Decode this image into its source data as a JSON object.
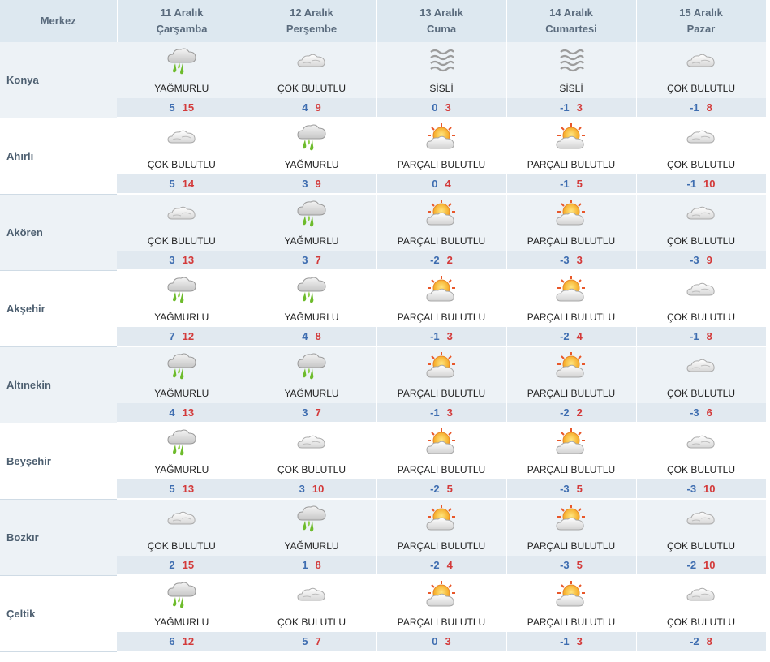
{
  "header": {
    "merkez": "Merkez",
    "days": [
      {
        "date": "11 Aralık",
        "day": "Çarşamba"
      },
      {
        "date": "12 Aralık",
        "day": "Perşembe"
      },
      {
        "date": "13 Aralık",
        "day": "Cuma"
      },
      {
        "date": "14 Aralık",
        "day": "Cumartesi"
      },
      {
        "date": "15 Aralık",
        "day": "Pazar"
      }
    ]
  },
  "icons": {
    "rain": "rain-cloud-icon",
    "cloudy": "cloudy-icon",
    "fog": "fog-icon",
    "partly": "partly-cloudy-sun-icon"
  },
  "colors": {
    "low": "#3e6db0",
    "high": "#d33a3a",
    "header_bg": "#dde8f0",
    "shade_bg": "#edf2f6"
  },
  "rows": [
    {
      "city": "Konya",
      "days": [
        {
          "icon": "rain",
          "desc": "YAĞMURLU",
          "low": "5",
          "high": "15"
        },
        {
          "icon": "cloudy",
          "desc": "ÇOK BULUTLU",
          "low": "4",
          "high": "9"
        },
        {
          "icon": "fog",
          "desc": "SİSLİ",
          "low": "0",
          "high": "3"
        },
        {
          "icon": "fog",
          "desc": "SİSLİ",
          "low": "-1",
          "high": "3"
        },
        {
          "icon": "cloudy",
          "desc": "ÇOK BULUTLU",
          "low": "-1",
          "high": "8"
        }
      ]
    },
    {
      "city": "Ahırlı",
      "days": [
        {
          "icon": "cloudy",
          "desc": "ÇOK BULUTLU",
          "low": "5",
          "high": "14"
        },
        {
          "icon": "rain",
          "desc": "YAĞMURLU",
          "low": "3",
          "high": "9"
        },
        {
          "icon": "partly",
          "desc": "PARÇALI BULUTLU",
          "low": "0",
          "high": "4"
        },
        {
          "icon": "partly",
          "desc": "PARÇALI BULUTLU",
          "low": "-1",
          "high": "5"
        },
        {
          "icon": "cloudy",
          "desc": "ÇOK BULUTLU",
          "low": "-1",
          "high": "10"
        }
      ]
    },
    {
      "city": "Akören",
      "days": [
        {
          "icon": "cloudy",
          "desc": "ÇOK BULUTLU",
          "low": "3",
          "high": "13"
        },
        {
          "icon": "rain",
          "desc": "YAĞMURLU",
          "low": "3",
          "high": "7"
        },
        {
          "icon": "partly",
          "desc": "PARÇALI BULUTLU",
          "low": "-2",
          "high": "2"
        },
        {
          "icon": "partly",
          "desc": "PARÇALI BULUTLU",
          "low": "-3",
          "high": "3"
        },
        {
          "icon": "cloudy",
          "desc": "ÇOK BULUTLU",
          "low": "-3",
          "high": "9"
        }
      ]
    },
    {
      "city": "Akşehir",
      "days": [
        {
          "icon": "rain",
          "desc": "YAĞMURLU",
          "low": "7",
          "high": "12"
        },
        {
          "icon": "rain",
          "desc": "YAĞMURLU",
          "low": "4",
          "high": "8"
        },
        {
          "icon": "partly",
          "desc": "PARÇALI BULUTLU",
          "low": "-1",
          "high": "3"
        },
        {
          "icon": "partly",
          "desc": "PARÇALI BULUTLU",
          "low": "-2",
          "high": "4"
        },
        {
          "icon": "cloudy",
          "desc": "ÇOK BULUTLU",
          "low": "-1",
          "high": "8"
        }
      ]
    },
    {
      "city": "Altınekin",
      "days": [
        {
          "icon": "rain",
          "desc": "YAĞMURLU",
          "low": "4",
          "high": "13"
        },
        {
          "icon": "rain",
          "desc": "YAĞMURLU",
          "low": "3",
          "high": "7"
        },
        {
          "icon": "partly",
          "desc": "PARÇALI BULUTLU",
          "low": "-1",
          "high": "3"
        },
        {
          "icon": "partly",
          "desc": "PARÇALI BULUTLU",
          "low": "-2",
          "high": "2"
        },
        {
          "icon": "cloudy",
          "desc": "ÇOK BULUTLU",
          "low": "-3",
          "high": "6"
        }
      ]
    },
    {
      "city": "Beyşehir",
      "days": [
        {
          "icon": "rain",
          "desc": "YAĞMURLU",
          "low": "5",
          "high": "13"
        },
        {
          "icon": "cloudy",
          "desc": "ÇOK BULUTLU",
          "low": "3",
          "high": "10"
        },
        {
          "icon": "partly",
          "desc": "PARÇALI BULUTLU",
          "low": "-2",
          "high": "5"
        },
        {
          "icon": "partly",
          "desc": "PARÇALI BULUTLU",
          "low": "-3",
          "high": "5"
        },
        {
          "icon": "cloudy",
          "desc": "ÇOK BULUTLU",
          "low": "-3",
          "high": "10"
        }
      ]
    },
    {
      "city": "Bozkır",
      "days": [
        {
          "icon": "cloudy",
          "desc": "ÇOK BULUTLU",
          "low": "2",
          "high": "15"
        },
        {
          "icon": "rain",
          "desc": "YAĞMURLU",
          "low": "1",
          "high": "8"
        },
        {
          "icon": "partly",
          "desc": "PARÇALI BULUTLU",
          "low": "-2",
          "high": "4"
        },
        {
          "icon": "partly",
          "desc": "PARÇALI BULUTLU",
          "low": "-3",
          "high": "5"
        },
        {
          "icon": "cloudy",
          "desc": "ÇOK BULUTLU",
          "low": "-2",
          "high": "10"
        }
      ]
    },
    {
      "city": "Çeltik",
      "days": [
        {
          "icon": "rain",
          "desc": "YAĞMURLU",
          "low": "6",
          "high": "12"
        },
        {
          "icon": "cloudy",
          "desc": "ÇOK BULUTLU",
          "low": "5",
          "high": "7"
        },
        {
          "icon": "partly",
          "desc": "PARÇALI BULUTLU",
          "low": "0",
          "high": "3"
        },
        {
          "icon": "partly",
          "desc": "PARÇALI BULUTLU",
          "low": "-1",
          "high": "3"
        },
        {
          "icon": "cloudy",
          "desc": "ÇOK BULUTLU",
          "low": "-2",
          "high": "8"
        }
      ]
    }
  ]
}
